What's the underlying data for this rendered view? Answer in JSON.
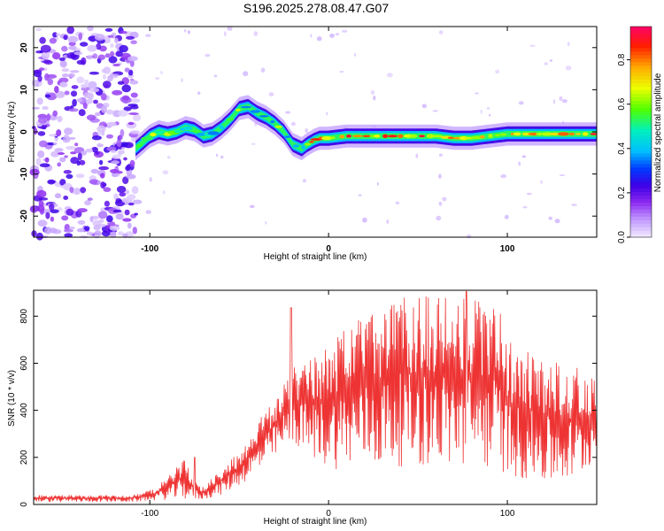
{
  "title": "S196.2025.278.08.47.G07",
  "chart_data": [
    {
      "type": "heatmap",
      "xlabel": "Height of straight line (km)",
      "ylabel": "Frequency (Hz)",
      "xlim": [
        -165,
        150
      ],
      "ylim": [
        -25,
        25
      ],
      "xticks": [
        -100,
        0,
        100
      ],
      "yticks": [
        -20,
        -10,
        0,
        10,
        20
      ],
      "ridge": {
        "x": [
          -108,
          -100,
          -95,
          -90,
          -85,
          -80,
          -75,
          -70,
          -65,
          -60,
          -55,
          -50,
          -45,
          -40,
          -35,
          -30,
          -25,
          -20,
          -15,
          -12,
          -8,
          -5,
          0,
          10,
          20,
          40,
          60,
          70,
          80,
          90,
          100,
          120,
          150
        ],
        "y": [
          -4,
          -1,
          0,
          -0.5,
          0,
          1,
          0.5,
          -1,
          -0.5,
          1,
          3,
          5.5,
          6,
          4.5,
          3.5,
          2,
          0,
          -3,
          -4,
          -3,
          -2,
          -1.5,
          -1.5,
          -1,
          -1,
          -1,
          -1,
          -1.5,
          -1.5,
          -1,
          -0.5,
          -0.5,
          -0.5
        ]
      },
      "colorbar": {
        "label": "Normalized spectral amplitude",
        "ticks": [
          "0.0",
          "0.2",
          "0.4",
          "0.6",
          "0.8"
        ],
        "range": [
          0,
          0.95
        ]
      }
    },
    {
      "type": "line",
      "xlabel": "Height of straight line (km)",
      "ylabel": "SNR (10 * v/v)",
      "xlim": [
        -165,
        150
      ],
      "ylim": [
        0,
        910
      ],
      "xticks": [
        -100,
        0,
        100
      ],
      "yticks": [
        0,
        200,
        400,
        600,
        800
      ],
      "color": "#ee3333",
      "envelope": {
        "x": [
          -165,
          -110,
          -100,
          -90,
          -80,
          -75,
          -70,
          -60,
          -50,
          -40,
          -30,
          -20,
          -10,
          0,
          10,
          20,
          30,
          40,
          60,
          80,
          95,
          100,
          110,
          120,
          130,
          140,
          150
        ],
        "upper": [
          40,
          40,
          60,
          120,
          200,
          100,
          80,
          150,
          230,
          350,
          450,
          580,
          620,
          700,
          760,
          800,
          850,
          880,
          890,
          870,
          850,
          700,
          660,
          620,
          600,
          580,
          520
        ],
        "lower": [
          10,
          10,
          15,
          20,
          20,
          20,
          20,
          40,
          80,
          130,
          200,
          260,
          200,
          150,
          150,
          160,
          150,
          160,
          160,
          150,
          150,
          120,
          100,
          80,
          80,
          100,
          200
        ]
      },
      "spikes": [
        {
          "x": -21,
          "y": 835
        },
        {
          "x": -75,
          "y": 200
        },
        {
          "x": 77,
          "y": 905
        }
      ]
    }
  ]
}
